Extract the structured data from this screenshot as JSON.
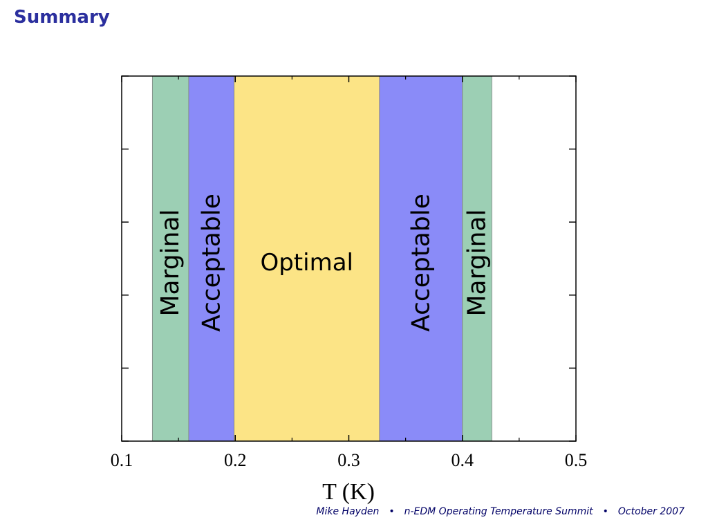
{
  "slide": {
    "title": "Summary"
  },
  "footer": {
    "author": "Mike Hayden",
    "separator": "•",
    "event": "n-EDM Operating Temperature Summit",
    "date": "October 2007"
  },
  "chart_data": {
    "type": "area",
    "xlabel": "T (K)",
    "ylabel": "",
    "xlim": [
      0.1,
      0.5
    ],
    "x_ticks": [
      "0.1",
      "0.2",
      "0.3",
      "0.4",
      "0.5"
    ],
    "x_tick_values": [
      0.1,
      0.2,
      0.3,
      0.4,
      0.5
    ],
    "y_ticks_labeled": false,
    "grid": false,
    "legend": "none",
    "regions": [
      {
        "label": "Marginal",
        "x0": 0.127,
        "x1": 0.159,
        "color": "#9ccfb4",
        "label_orientation": "vertical"
      },
      {
        "label": "Acceptable",
        "x0": 0.159,
        "x1": 0.199,
        "color": "#8a8bf8",
        "label_orientation": "vertical"
      },
      {
        "label": "Optimal",
        "x0": 0.199,
        "x1": 0.327,
        "color": "#fce486",
        "label_orientation": "horizontal"
      },
      {
        "label": "Acceptable",
        "x0": 0.327,
        "x1": 0.4,
        "color": "#8a8bf8",
        "label_orientation": "vertical"
      },
      {
        "label": "Marginal",
        "x0": 0.4,
        "x1": 0.426,
        "color": "#9ccfb4",
        "label_orientation": "vertical"
      }
    ]
  }
}
